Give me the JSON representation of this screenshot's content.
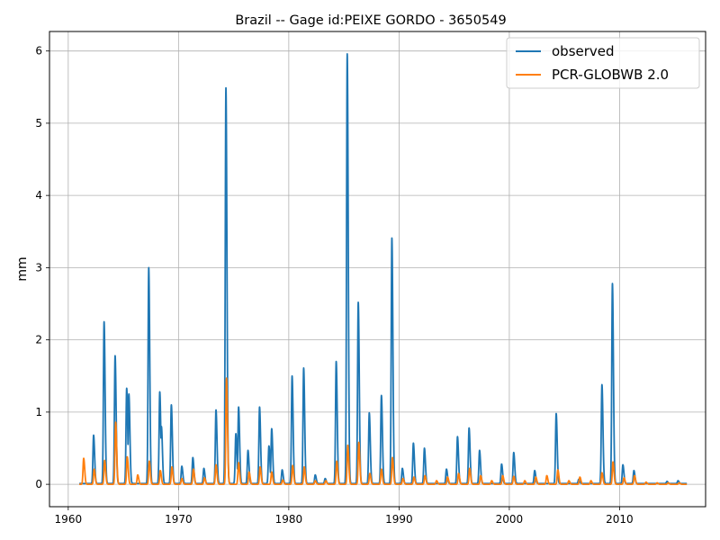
{
  "chart_data": {
    "type": "line",
    "title": "Brazil -- Gage id:PEIXE GORDO - 3650549",
    "xlabel": "",
    "ylabel": "mm",
    "xlim": [
      1958.3,
      2017.8
    ],
    "ylim": [
      -0.31,
      6.27
    ],
    "xticks": [
      1960,
      1970,
      1980,
      1990,
      2000,
      2010
    ],
    "yticks": [
      0,
      1,
      2,
      3,
      4,
      5,
      6
    ],
    "grid": true,
    "legend_position": "top-right",
    "series": [
      {
        "name": "observed",
        "color": "#1f77b4",
        "baseline": 0.01,
        "start": 1961.0,
        "end": 2016.1,
        "peaks": [
          [
            1962.3,
            0.68
          ],
          [
            1963.25,
            2.25
          ],
          [
            1964.25,
            1.78
          ],
          [
            1965.3,
            1.33
          ],
          [
            1965.5,
            1.25
          ],
          [
            1967.3,
            3.0
          ],
          [
            1968.3,
            1.28
          ],
          [
            1968.45,
            0.8
          ],
          [
            1969.35,
            1.1
          ],
          [
            1970.3,
            0.25
          ],
          [
            1971.3,
            0.37
          ],
          [
            1972.3,
            0.22
          ],
          [
            1973.4,
            1.03
          ],
          [
            1974.3,
            5.49
          ],
          [
            1975.2,
            0.7
          ],
          [
            1975.45,
            1.07
          ],
          [
            1976.3,
            0.47
          ],
          [
            1977.35,
            1.07
          ],
          [
            1978.2,
            0.53
          ],
          [
            1978.45,
            0.77
          ],
          [
            1979.4,
            0.2
          ],
          [
            1980.3,
            1.5
          ],
          [
            1981.35,
            1.61
          ],
          [
            1982.4,
            0.13
          ],
          [
            1983.3,
            0.08
          ],
          [
            1984.3,
            1.7
          ],
          [
            1985.3,
            5.96
          ],
          [
            1986.3,
            2.52
          ],
          [
            1987.3,
            0.99
          ],
          [
            1988.4,
            1.23
          ],
          [
            1989.35,
            3.41
          ],
          [
            1990.3,
            0.22
          ],
          [
            1991.3,
            0.57
          ],
          [
            1992.3,
            0.5
          ],
          [
            1994.3,
            0.21
          ],
          [
            1995.3,
            0.66
          ],
          [
            1996.35,
            0.78
          ],
          [
            1997.3,
            0.47
          ],
          [
            1999.3,
            0.28
          ],
          [
            2000.4,
            0.44
          ],
          [
            2002.3,
            0.19
          ],
          [
            2004.25,
            0.98
          ],
          [
            2006.3,
            0.07
          ],
          [
            2008.4,
            1.38
          ],
          [
            2009.35,
            2.78
          ],
          [
            2010.3,
            0.27
          ],
          [
            2011.3,
            0.19
          ],
          [
            2014.3,
            0.04
          ],
          [
            2015.3,
            0.05
          ]
        ]
      },
      {
        "name": "PCR-GLOBWB 2.0",
        "color": "#ff7f0e",
        "baseline": 0.0,
        "start": 1961.0,
        "end": 2016.1,
        "peaks": [
          [
            1961.4,
            0.36
          ],
          [
            1962.35,
            0.21
          ],
          [
            1963.3,
            0.33
          ],
          [
            1964.3,
            0.86
          ],
          [
            1965.35,
            0.38
          ],
          [
            1966.3,
            0.13
          ],
          [
            1967.35,
            0.32
          ],
          [
            1968.35,
            0.19
          ],
          [
            1969.4,
            0.24
          ],
          [
            1970.3,
            0.08
          ],
          [
            1971.35,
            0.21
          ],
          [
            1972.35,
            0.09
          ],
          [
            1973.4,
            0.27
          ],
          [
            1974.35,
            1.47
          ],
          [
            1975.45,
            0.3
          ],
          [
            1976.4,
            0.17
          ],
          [
            1977.4,
            0.24
          ],
          [
            1978.45,
            0.17
          ],
          [
            1979.45,
            0.06
          ],
          [
            1980.35,
            0.26
          ],
          [
            1981.4,
            0.24
          ],
          [
            1982.4,
            0.05
          ],
          [
            1983.35,
            0.05
          ],
          [
            1984.35,
            0.32
          ],
          [
            1985.35,
            0.54
          ],
          [
            1986.35,
            0.58
          ],
          [
            1987.35,
            0.15
          ],
          [
            1988.4,
            0.21
          ],
          [
            1989.4,
            0.37
          ],
          [
            1990.35,
            0.08
          ],
          [
            1991.35,
            0.1
          ],
          [
            1992.35,
            0.12
          ],
          [
            1993.4,
            0.05
          ],
          [
            1994.4,
            0.1
          ],
          [
            1995.4,
            0.15
          ],
          [
            1996.4,
            0.22
          ],
          [
            1997.4,
            0.12
          ],
          [
            1998.4,
            0.05
          ],
          [
            1999.4,
            0.12
          ],
          [
            2000.4,
            0.11
          ],
          [
            2001.4,
            0.05
          ],
          [
            2002.4,
            0.1
          ],
          [
            2003.4,
            0.12
          ],
          [
            2004.4,
            0.2
          ],
          [
            2005.4,
            0.05
          ],
          [
            2006.4,
            0.1
          ],
          [
            2007.4,
            0.05
          ],
          [
            2008.4,
            0.16
          ],
          [
            2009.4,
            0.31
          ],
          [
            2010.4,
            0.09
          ],
          [
            2011.35,
            0.12
          ],
          [
            2012.4,
            0.03
          ],
          [
            2013.4,
            0.02
          ],
          [
            2014.4,
            0.02
          ],
          [
            2015.4,
            0.02
          ]
        ]
      }
    ]
  }
}
